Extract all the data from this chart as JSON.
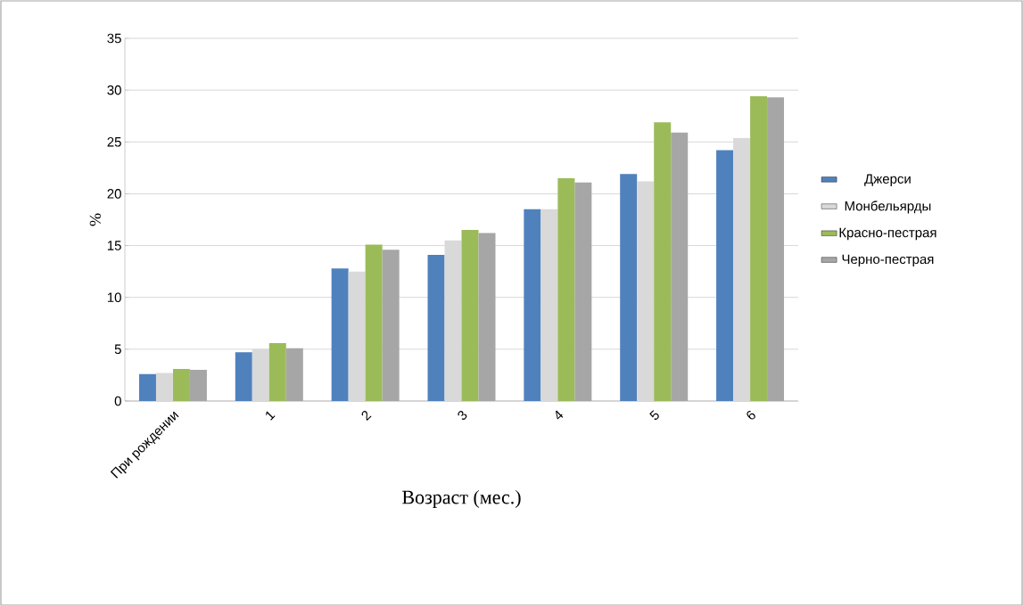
{
  "chart_data": {
    "type": "bar",
    "xlabel": "Возраст (мес.)",
    "ylabel": "%",
    "categories": [
      "При рождении",
      "1",
      "2",
      "3",
      "4",
      "5",
      "6"
    ],
    "series": [
      {
        "name": "Джерси",
        "color": "#4f81bd",
        "values": [
          2.6,
          4.7,
          12.8,
          14.1,
          18.5,
          21.9,
          24.2
        ]
      },
      {
        "name": "Монбельярды",
        "color": "#d9d9d9",
        "values": [
          2.7,
          5.0,
          12.5,
          15.5,
          18.5,
          21.2,
          25.4
        ]
      },
      {
        "name": "Красно-пестрая",
        "color": "#9bbb59",
        "values": [
          3.1,
          5.6,
          15.1,
          16.5,
          21.5,
          26.9,
          29.4
        ]
      },
      {
        "name": "Черно-пестрая",
        "color": "#a6a6a6",
        "values": [
          3.0,
          5.1,
          14.6,
          16.2,
          21.1,
          25.9,
          29.3
        ]
      }
    ],
    "ylim": [
      0,
      35
    ],
    "yticks": [
      0,
      5,
      10,
      15,
      20,
      25,
      30,
      35
    ],
    "grid": "y",
    "legend": "right"
  }
}
